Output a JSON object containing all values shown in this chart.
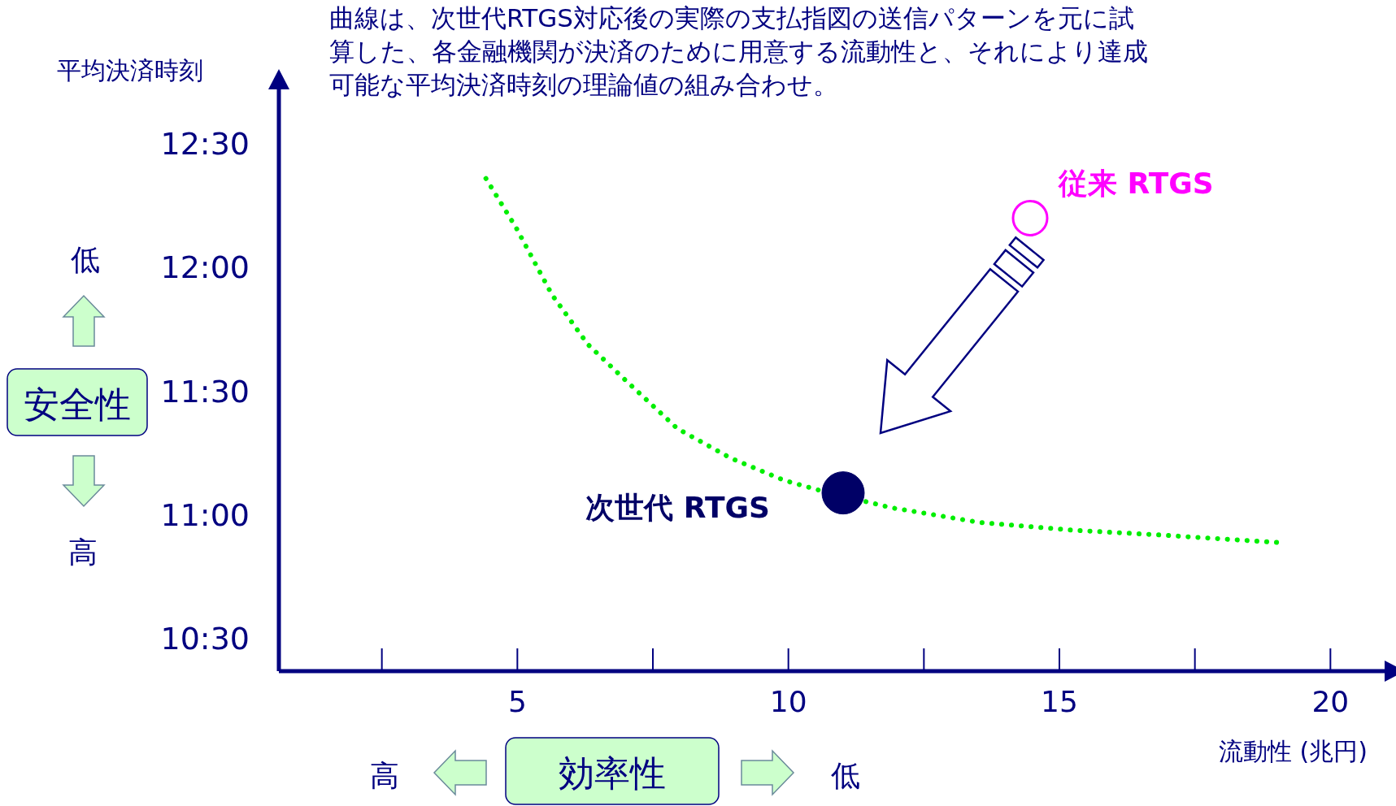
{
  "chart_data": {
    "type": "line",
    "title": "曲線は、次世代RTGS対応後の実際の支払指図の送信パターンを元に試算した、各金融機関が決済のために用意する流動性と、それにより達成可能な平均決済時刻の理論値の組み合わせ。",
    "xlabel": "流動性 (兆円)",
    "ylabel": "平均決済時刻",
    "xlim": [
      0.6,
      21
    ],
    "ylim": [
      10.37,
      12.72
    ],
    "xticks": [
      5,
      10,
      15,
      20
    ],
    "yticks": [
      {
        "value": 10.5,
        "label": "10:30"
      },
      {
        "value": 11,
        "label": "11:00"
      },
      {
        "value": 11.5,
        "label": "11:30"
      },
      {
        "value": 12,
        "label": "12:00"
      },
      {
        "value": 12.5,
        "label": "12:30"
      }
    ],
    "grid": false,
    "legend": false,
    "series": [
      {
        "color": "#00ee00",
        "line_style": "dotted",
        "x": [
          4.42,
          4.98,
          5.64,
          6.3,
          6.97,
          7.95,
          8.94,
          9.93,
          10.58,
          11.9,
          13.55,
          15.2,
          16.85,
          19.02
        ],
        "values": [
          12.36,
          12.16,
          11.89,
          11.69,
          11.55,
          11.35,
          11.23,
          11.14,
          11.1,
          11.03,
          10.97,
          10.94,
          10.92,
          10.89
        ]
      },
      {
        "type": "scatter",
        "name": "次世代 RTGS",
        "color": "#000066",
        "x": [
          11.01
        ],
        "values": [
          11.09
        ]
      },
      {
        "type": "scatter",
        "name": "従来 RTGS",
        "color": "#ff00ff",
        "x": [
          14.46
        ],
        "values": [
          12.2
        ]
      }
    ],
    "annotations": [
      "低",
      "安全性",
      "高",
      "高",
      "効率性",
      "低"
    ]
  }
}
